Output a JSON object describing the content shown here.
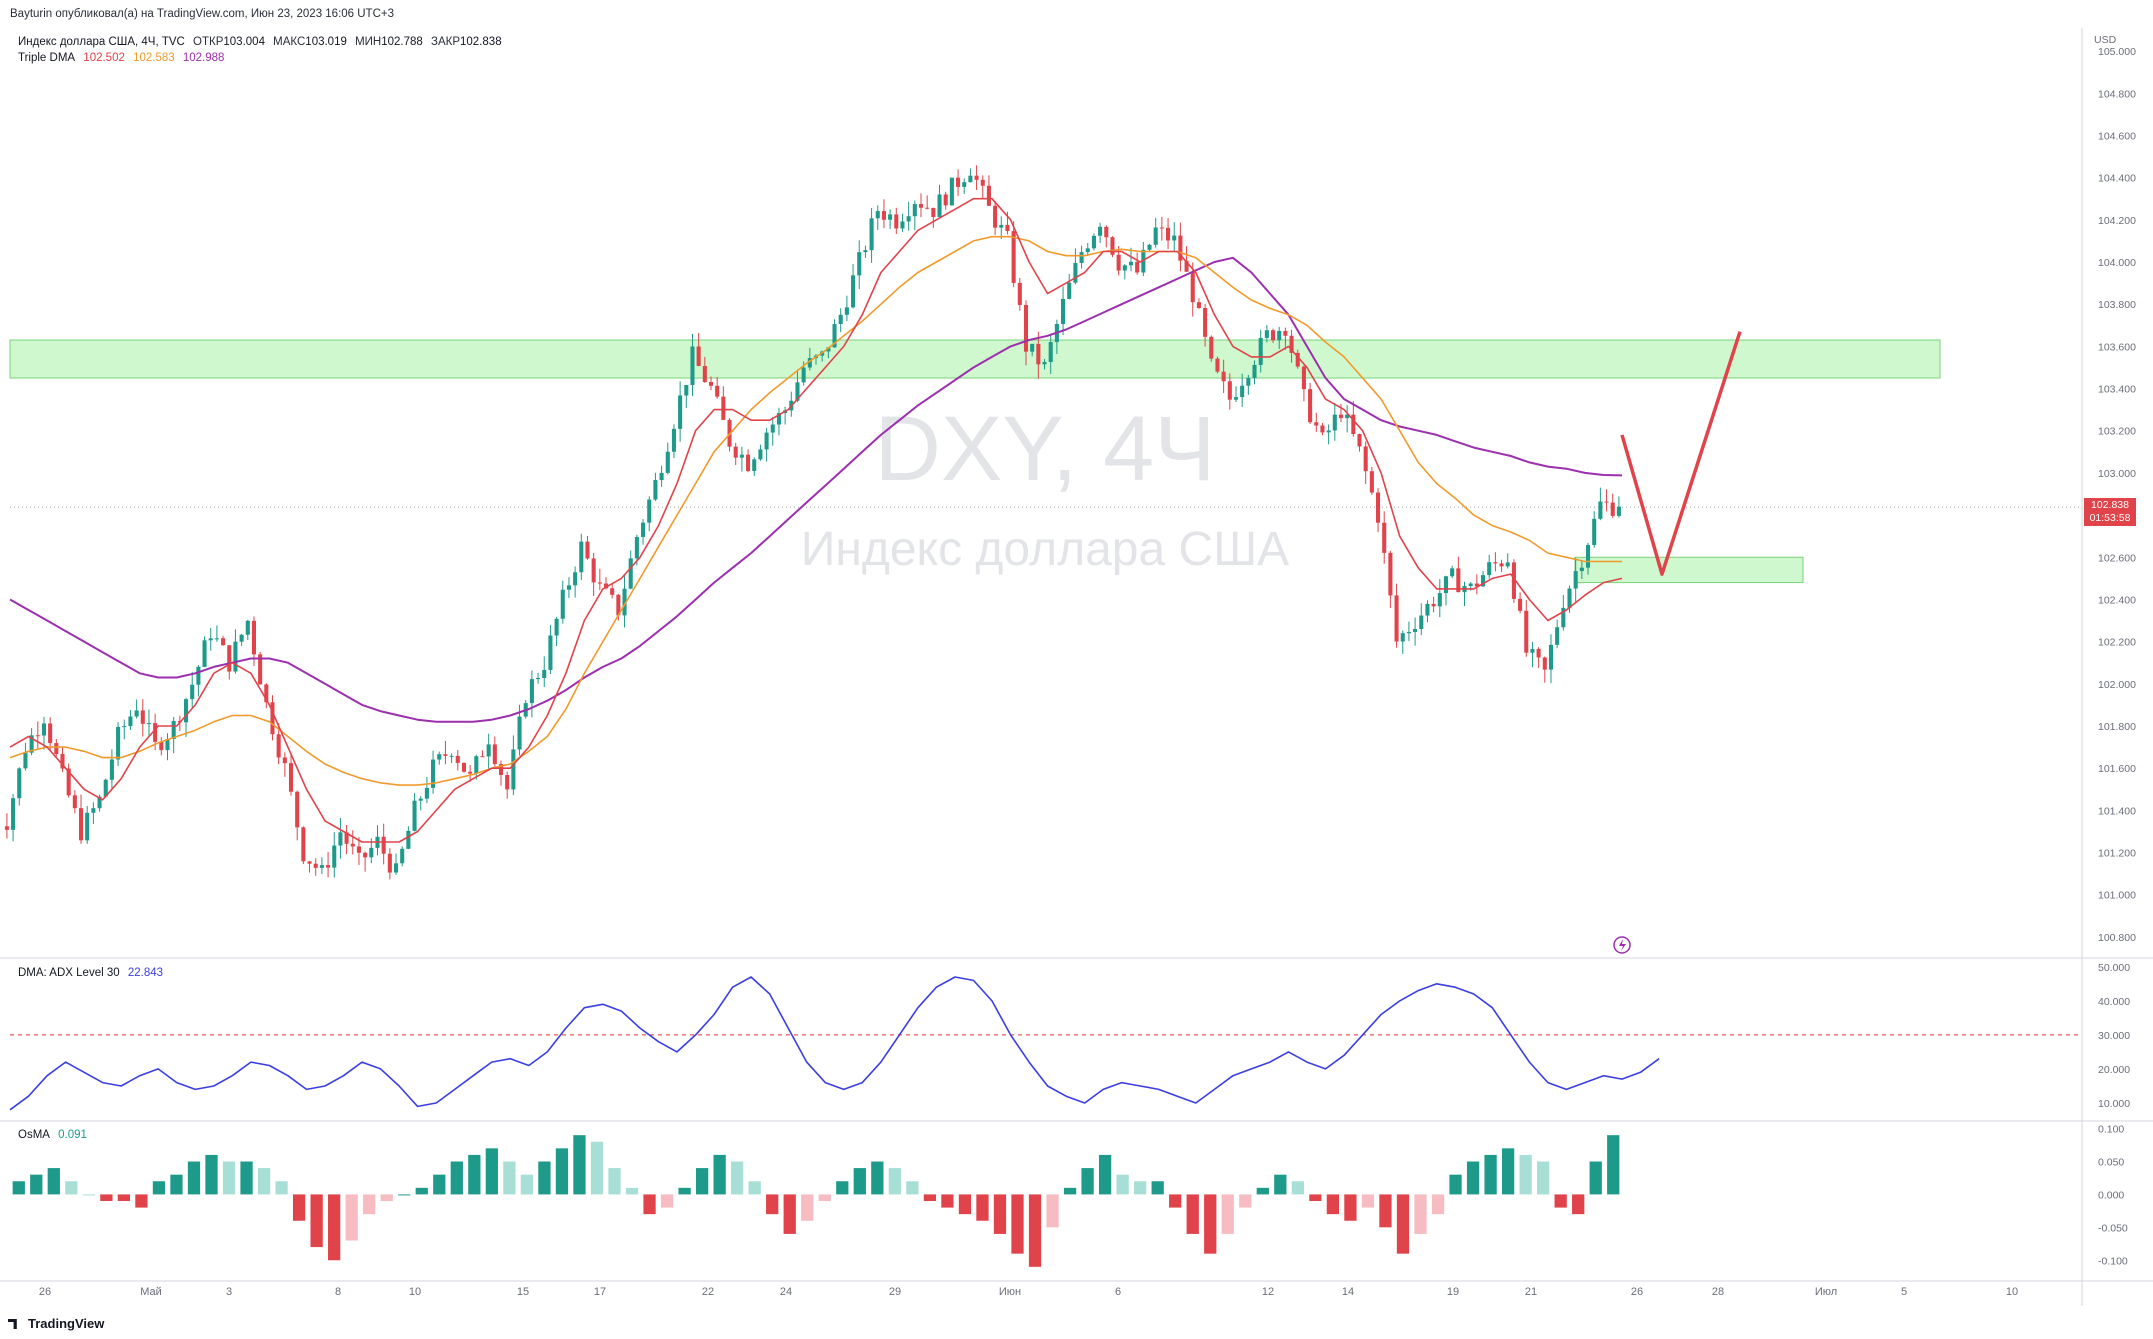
{
  "header": {
    "publisher_line": "Bayturin опубликовал(а) на TradingView.com, Июн 23, 2023 16:06 UTC+3",
    "symbol_line": "Индекс доллара США, 4Ч, TVC",
    "open_label": "ОТКР",
    "open_value": "103.004",
    "high_label": "МАКС",
    "high_value": "103.019",
    "low_label": "МИН",
    "low_value": "102.788",
    "close_label": "ЗАКР",
    "close_value": "102.838",
    "indicator_label": "Triple DMA",
    "dma_fast": "102.502",
    "dma_mid": "102.583",
    "dma_slow": "102.988"
  },
  "watermark": {
    "ticker": "DXY, 4Ч",
    "name": "Индекс доллара США"
  },
  "currency": "USD",
  "price_badge": {
    "price": "102.838",
    "countdown": "01:53:58"
  },
  "adx_panel": {
    "label": "DMA: ADX Level 30",
    "value": "22.843"
  },
  "osma_panel": {
    "label": "OsMA",
    "value": "0.091"
  },
  "footer_logo": "TradingView",
  "colors": {
    "up": "#1e9a8a",
    "down": "#e0434a",
    "ma_fast": "#e0434a",
    "ma_mid": "#f19a2b",
    "ma_slow": "#9b2fae",
    "adx": "#3b3ee0",
    "zone": "#c8f7c5",
    "osma_up_light": "#a7dfd6",
    "osma_down_light": "#f6bcc1"
  },
  "chart_data": [
    {
      "type": "candlestick",
      "title": "Индекс доллара США, 4Ч, TVC",
      "ylim": [
        100.7,
        105.1
      ],
      "y_ticks": [
        "105.000",
        "104.800",
        "104.600",
        "104.400",
        "104.200",
        "104.000",
        "103.800",
        "103.600",
        "103.400",
        "103.200",
        "103.000",
        "102.600",
        "102.400",
        "102.200",
        "102.000",
        "101.800",
        "101.600",
        "101.400",
        "101.200",
        "101.000",
        "100.800"
      ],
      "x_ticks": [
        "26",
        "Май",
        "3",
        "8",
        "10",
        "15",
        "17",
        "22",
        "24",
        "29",
        "Июн",
        "6",
        "12",
        "14",
        "19",
        "21",
        "26",
        "28",
        "Июл",
        "5",
        "10"
      ],
      "close_path": [
        101.35,
        101.7,
        101.85,
        101.55,
        101.3,
        101.45,
        101.75,
        101.9,
        101.7,
        101.8,
        102.0,
        102.25,
        102.1,
        102.3,
        101.9,
        101.6,
        101.2,
        101.1,
        101.3,
        101.15,
        101.25,
        101.1,
        101.4,
        101.6,
        101.7,
        101.55,
        101.75,
        101.5,
        101.95,
        102.1,
        102.4,
        102.65,
        102.45,
        102.35,
        102.7,
        102.95,
        103.25,
        103.55,
        103.4,
        103.15,
        103.05,
        103.2,
        103.3,
        103.5,
        103.55,
        103.75,
        104.0,
        104.25,
        104.2,
        104.3,
        104.25,
        104.35,
        104.45,
        104.25,
        104.1,
        103.6,
        103.5,
        103.8,
        104.05,
        104.2,
        104.0,
        103.95,
        104.15,
        104.1,
        103.85,
        103.5,
        103.35,
        103.5,
        103.65,
        103.7,
        103.35,
        103.15,
        103.3,
        103.1,
        102.8,
        102.2,
        102.3,
        102.4,
        102.5,
        102.45,
        102.55,
        102.6,
        102.15,
        102.05,
        102.4,
        102.6,
        102.85,
        102.84
      ],
      "ma_fast_path": [
        101.7,
        101.75,
        101.7,
        101.6,
        101.5,
        101.45,
        101.55,
        101.7,
        101.8,
        101.8,
        101.9,
        102.05,
        102.1,
        102.05,
        101.9,
        101.7,
        101.5,
        101.35,
        101.3,
        101.25,
        101.25,
        101.25,
        101.3,
        101.4,
        101.5,
        101.55,
        101.6,
        101.6,
        101.7,
        101.85,
        102.05,
        102.3,
        102.45,
        102.5,
        102.6,
        102.75,
        102.95,
        103.2,
        103.3,
        103.3,
        103.25,
        103.25,
        103.3,
        103.4,
        103.5,
        103.6,
        103.75,
        103.95,
        104.05,
        104.15,
        104.2,
        104.25,
        104.3,
        104.3,
        104.2,
        104.0,
        103.85,
        103.9,
        103.95,
        104.05,
        104.05,
        104.0,
        104.05,
        104.05,
        103.95,
        103.75,
        103.6,
        103.55,
        103.55,
        103.6,
        103.5,
        103.35,
        103.3,
        103.2,
        103.0,
        102.7,
        102.55,
        102.45,
        102.45,
        102.45,
        102.5,
        102.52,
        102.4,
        102.3,
        102.35,
        102.42,
        102.48,
        102.5
      ],
      "ma_mid_path": [
        101.65,
        101.68,
        101.7,
        101.7,
        101.68,
        101.65,
        101.65,
        101.68,
        101.72,
        101.75,
        101.78,
        101.82,
        101.85,
        101.85,
        101.82,
        101.75,
        101.68,
        101.62,
        101.58,
        101.55,
        101.53,
        101.52,
        101.52,
        101.53,
        101.55,
        101.57,
        101.6,
        101.62,
        101.68,
        101.75,
        101.88,
        102.05,
        102.2,
        102.35,
        102.5,
        102.65,
        102.8,
        102.95,
        103.1,
        103.2,
        103.3,
        103.38,
        103.45,
        103.52,
        103.58,
        103.65,
        103.72,
        103.8,
        103.88,
        103.95,
        104.0,
        104.05,
        104.1,
        104.12,
        104.12,
        104.1,
        104.05,
        104.03,
        104.03,
        104.05,
        104.06,
        104.05,
        104.05,
        104.05,
        104.02,
        103.95,
        103.88,
        103.82,
        103.78,
        103.75,
        103.7,
        103.62,
        103.55,
        103.45,
        103.35,
        103.2,
        103.05,
        102.95,
        102.88,
        102.8,
        102.75,
        102.72,
        102.68,
        102.62,
        102.6,
        102.58,
        102.58,
        102.58
      ],
      "ma_slow_path": [
        102.4,
        102.35,
        102.3,
        102.25,
        102.2,
        102.15,
        102.1,
        102.05,
        102.03,
        102.03,
        102.05,
        102.08,
        102.1,
        102.12,
        102.12,
        102.1,
        102.05,
        102.0,
        101.95,
        101.9,
        101.87,
        101.85,
        101.83,
        101.82,
        101.82,
        101.82,
        101.83,
        101.85,
        101.88,
        101.92,
        101.97,
        102.03,
        102.08,
        102.12,
        102.18,
        102.25,
        102.32,
        102.4,
        102.48,
        102.55,
        102.62,
        102.7,
        102.78,
        102.86,
        102.94,
        103.02,
        103.1,
        103.18,
        103.25,
        103.32,
        103.38,
        103.44,
        103.5,
        103.55,
        103.6,
        103.63,
        103.65,
        103.68,
        103.72,
        103.76,
        103.8,
        103.84,
        103.88,
        103.92,
        103.96,
        104.0,
        104.02,
        103.95,
        103.85,
        103.75,
        103.6,
        103.45,
        103.35,
        103.3,
        103.25,
        103.22,
        103.2,
        103.18,
        103.15,
        103.12,
        103.1,
        103.08,
        103.05,
        103.03,
        103.02,
        103.0,
        102.99,
        102.988
      ],
      "zones": [
        {
          "from": 103.45,
          "to": 103.63
        },
        {
          "from": 102.48,
          "to": 102.6
        }
      ],
      "projection": [
        103.18,
        102.52,
        103.67
      ]
    },
    {
      "type": "line",
      "title": "DMA: ADX Level 30",
      "ylim": [
        5,
        52
      ],
      "y_ticks": [
        "50.000",
        "40.000",
        "30.000",
        "20.000",
        "10.000"
      ],
      "level": 30,
      "values": [
        8,
        12,
        18,
        22,
        19,
        16,
        15,
        18,
        20,
        16,
        14,
        15,
        18,
        22,
        21,
        18,
        14,
        15,
        18,
        22,
        20,
        15,
        9,
        10,
        14,
        18,
        22,
        23,
        21,
        25,
        32,
        38,
        39,
        37,
        32,
        28,
        25,
        30,
        36,
        44,
        47,
        42,
        32,
        22,
        16,
        14,
        16,
        22,
        30,
        38,
        44,
        47,
        46,
        40,
        30,
        22,
        15,
        12,
        10,
        14,
        16,
        15,
        14,
        12,
        10,
        14,
        18,
        20,
        22,
        25,
        22,
        20,
        24,
        30,
        36,
        40,
        43,
        45,
        44,
        42,
        38,
        30,
        22,
        16,
        14,
        16,
        18,
        17,
        19,
        23
      ]
    },
    {
      "type": "bar",
      "title": "OsMA",
      "ylim": [
        -0.13,
        0.11
      ],
      "y_ticks": [
        "0.100",
        "0.050",
        "0.000",
        "-0.050",
        "-0.100"
      ],
      "values": [
        0.02,
        0.03,
        0.04,
        0.02,
        0.0,
        -0.01,
        -0.01,
        -0.02,
        0.02,
        0.03,
        0.05,
        0.06,
        0.05,
        0.05,
        0.04,
        0.02,
        -0.04,
        -0.08,
        -0.1,
        -0.07,
        -0.03,
        -0.01,
        0.0,
        0.01,
        0.03,
        0.05,
        0.06,
        0.07,
        0.05,
        0.03,
        0.05,
        0.07,
        0.09,
        0.08,
        0.04,
        0.01,
        -0.03,
        -0.02,
        0.01,
        0.04,
        0.06,
        0.05,
        0.02,
        -0.03,
        -0.06,
        -0.04,
        -0.01,
        0.02,
        0.04,
        0.05,
        0.04,
        0.02,
        -0.01,
        -0.02,
        -0.03,
        -0.04,
        -0.06,
        -0.09,
        -0.11,
        -0.05,
        0.01,
        0.04,
        0.06,
        0.03,
        0.02,
        0.02,
        -0.02,
        -0.06,
        -0.09,
        -0.06,
        -0.02,
        0.01,
        0.03,
        0.02,
        -0.01,
        -0.03,
        -0.04,
        -0.02,
        -0.05,
        -0.09,
        -0.06,
        -0.03,
        0.03,
        0.05,
        0.06,
        0.07,
        0.06,
        0.05,
        -0.02,
        -0.03,
        0.05,
        0.09
      ]
    }
  ]
}
